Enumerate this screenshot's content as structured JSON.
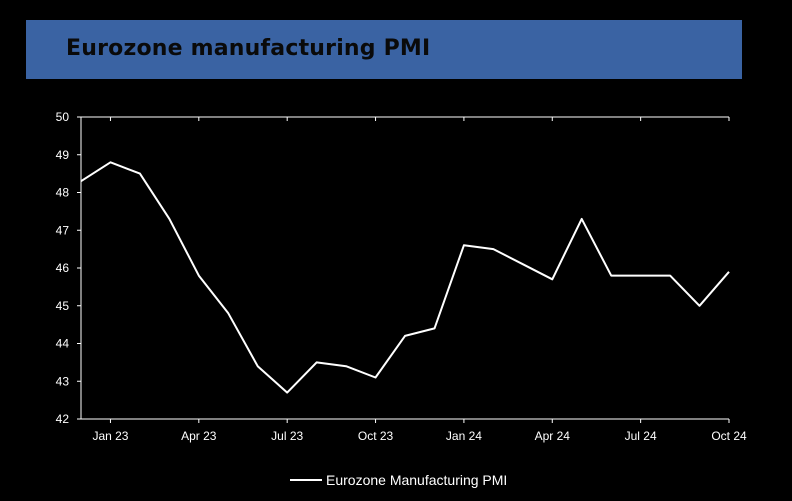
{
  "header": {
    "title": "Eurozone manufacturing PMI"
  },
  "chart_data": {
    "type": "line",
    "title": "Eurozone manufacturing PMI",
    "xlabel": "",
    "ylabel": "",
    "ylim": [
      42,
      50
    ],
    "yticks": [
      42,
      43,
      44,
      45,
      46,
      47,
      48,
      49,
      50
    ],
    "x": [
      "Dec 22",
      "Jan 23",
      "Feb 23",
      "Mar 23",
      "Apr 23",
      "May 23",
      "Jun 23",
      "Jul 23",
      "Aug 23",
      "Sep 23",
      "Oct 23",
      "Nov 23",
      "Dec 23",
      "Jan 24",
      "Feb 24",
      "Mar 24",
      "Apr 24",
      "May 24",
      "Jun 24",
      "Jul 24",
      "Aug 24",
      "Sep 24",
      "Oct 24"
    ],
    "xtick_labels": [
      "Jan 23",
      "Apr 23",
      "Jul 23",
      "Oct 23",
      "Jan 24",
      "Apr 24",
      "Jul 24",
      "Oct 24"
    ],
    "series": [
      {
        "name": "Eurozone Manufacturing PMI",
        "color": "#ffffff",
        "values": [
          48.3,
          48.8,
          48.5,
          47.3,
          45.8,
          44.8,
          43.4,
          42.7,
          43.5,
          43.4,
          43.1,
          44.2,
          44.4,
          46.6,
          46.5,
          46.1,
          45.7,
          47.3,
          45.8,
          45.8,
          45.8,
          45.0,
          45.9
        ]
      }
    ],
    "grid": false,
    "legend_position": "bottom"
  }
}
